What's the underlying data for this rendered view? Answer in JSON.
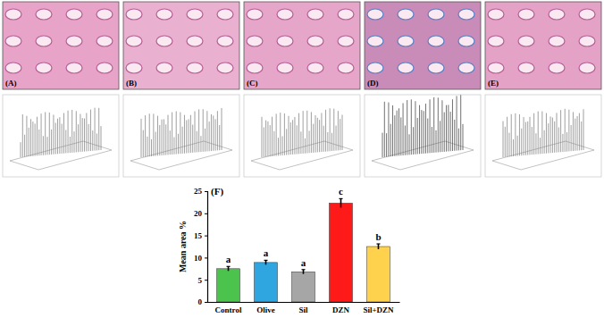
{
  "panels": {
    "labels": [
      "(A)",
      "(B)",
      "(C)",
      "(D)",
      "(E)"
    ]
  },
  "chart_data": {
    "type": "bar",
    "title": "(F)",
    "y_label": "Mean area %",
    "categories": [
      "Control",
      "Olive",
      "Sil",
      "DZN",
      "Sil+DZN"
    ],
    "values": [
      7.5,
      8.9,
      6.8,
      22.3,
      12.5
    ],
    "errors": [
      0.5,
      0.5,
      0.5,
      1.0,
      0.6
    ],
    "letters": [
      "a",
      "a",
      "a",
      "c",
      "b"
    ],
    "colors": [
      "#4cc34c",
      "#2fa6e0",
      "#a6a6a6",
      "#ff1a1a",
      "#ffd24d"
    ],
    "ylim": [
      0,
      25
    ],
    "yticks": [
      0,
      5,
      10,
      15,
      20,
      25
    ],
    "grid": false
  }
}
